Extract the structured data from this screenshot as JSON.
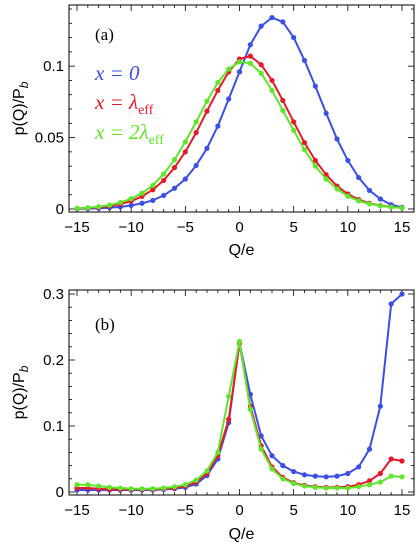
{
  "colors": {
    "blue": "#3a4fe6",
    "red": "#e6192b",
    "green": "#5ee62a"
  },
  "chart_data": [
    {
      "type": "line",
      "panel": "(a)",
      "xlabel": "Q/e",
      "ylabel": "p(Q)/P_b",
      "xlim": [
        -15,
        15
      ],
      "ylim": [
        0,
        0.14
      ],
      "xticks": [
        -15,
        -10,
        -5,
        0,
        5,
        10,
        15
      ],
      "yticks": [
        0,
        0.05,
        0.1
      ],
      "ytick_labels": [
        "0",
        "0.05",
        "0.1"
      ],
      "x": [
        -15,
        -14,
        -13,
        -12,
        -11,
        -10,
        -9,
        -8,
        -7,
        -6,
        -5,
        -4,
        -3,
        -2,
        -1,
        0,
        1,
        2,
        3,
        4,
        5,
        6,
        7,
        8,
        9,
        10,
        11,
        12,
        13,
        14,
        15
      ],
      "legend": {
        "position": "left",
        "entries": [
          "x = 0",
          "x = λeff",
          "x = 2λeff"
        ]
      },
      "series": [
        {
          "name": "x = 0",
          "color": "blue",
          "values": [
            0.0002,
            0.0003,
            0.0005,
            0.0009,
            0.0015,
            0.0025,
            0.004,
            0.006,
            0.0095,
            0.0145,
            0.021,
            0.0305,
            0.0425,
            0.058,
            0.077,
            0.096,
            0.115,
            0.128,
            0.134,
            0.131,
            0.12,
            0.104,
            0.086,
            0.067,
            0.049,
            0.034,
            0.022,
            0.013,
            0.007,
            0.003,
            0.0012
          ]
        },
        {
          "name": "x = λeff",
          "color": "red",
          "values": [
            0.0004,
            0.0007,
            0.0012,
            0.002,
            0.0034,
            0.0055,
            0.0088,
            0.0135,
            0.02,
            0.029,
            0.04,
            0.0535,
            0.0685,
            0.083,
            0.096,
            0.105,
            0.107,
            0.101,
            0.09,
            0.076,
            0.061,
            0.0465,
            0.034,
            0.024,
            0.016,
            0.0105,
            0.0066,
            0.004,
            0.0024,
            0.0014,
            0.0008
          ]
        },
        {
          "name": "x = 2λeff",
          "color": "green",
          "values": [
            0.0005,
            0.0009,
            0.0016,
            0.0027,
            0.0045,
            0.0072,
            0.011,
            0.0165,
            0.0245,
            0.0345,
            0.047,
            0.061,
            0.0755,
            0.0885,
            0.098,
            0.103,
            0.102,
            0.095,
            0.083,
            0.069,
            0.055,
            0.0415,
            0.03,
            0.021,
            0.014,
            0.009,
            0.0057,
            0.0036,
            0.0022,
            0.0013,
            0.0008
          ]
        }
      ]
    },
    {
      "type": "line",
      "panel": "(b)",
      "xlabel": "Q/e",
      "ylabel": "p(Q)/P_b",
      "xlim": [
        -15,
        15
      ],
      "ylim": [
        0,
        0.3
      ],
      "xticks": [
        -15,
        -10,
        -5,
        0,
        5,
        10,
        15
      ],
      "yticks": [
        0,
        0.1,
        0.2,
        0.3
      ],
      "ytick_labels": [
        "0",
        "0.1",
        "0.2",
        "0.3"
      ],
      "x": [
        -15,
        -14,
        -13,
        -12,
        -11,
        -10,
        -9,
        -8,
        -7,
        -6,
        -5,
        -4,
        -3,
        -2,
        -1,
        0,
        1,
        2,
        3,
        4,
        5,
        6,
        7,
        8,
        9,
        10,
        11,
        12,
        13,
        14,
        15
      ],
      "series": [
        {
          "name": "x = 0",
          "color": "blue",
          "values": [
            0.003,
            0.003,
            0.003,
            0.003,
            0.003,
            0.003,
            0.003,
            0.003,
            0.004,
            0.005,
            0.007,
            0.012,
            0.025,
            0.05,
            0.105,
            0.226,
            0.148,
            0.085,
            0.055,
            0.04,
            0.031,
            0.026,
            0.024,
            0.023,
            0.024,
            0.028,
            0.038,
            0.065,
            0.13,
            0.285,
            0.3
          ]
        },
        {
          "name": "x = λeff",
          "color": "red",
          "values": [
            0.006,
            0.006,
            0.005,
            0.004,
            0.004,
            0.004,
            0.004,
            0.004,
            0.005,
            0.006,
            0.009,
            0.015,
            0.028,
            0.055,
            0.11,
            0.225,
            0.13,
            0.07,
            0.038,
            0.022,
            0.014,
            0.01,
            0.008,
            0.007,
            0.007,
            0.008,
            0.011,
            0.017,
            0.028,
            0.05,
            0.047
          ]
        },
        {
          "name": "x = 2λeff",
          "color": "green",
          "values": [
            0.011,
            0.011,
            0.009,
            0.007,
            0.006,
            0.005,
            0.005,
            0.005,
            0.006,
            0.008,
            0.011,
            0.018,
            0.032,
            0.06,
            0.145,
            0.228,
            0.125,
            0.065,
            0.035,
            0.02,
            0.013,
            0.009,
            0.007,
            0.006,
            0.006,
            0.006,
            0.008,
            0.011,
            0.015,
            0.024,
            0.023
          ]
        }
      ]
    }
  ]
}
